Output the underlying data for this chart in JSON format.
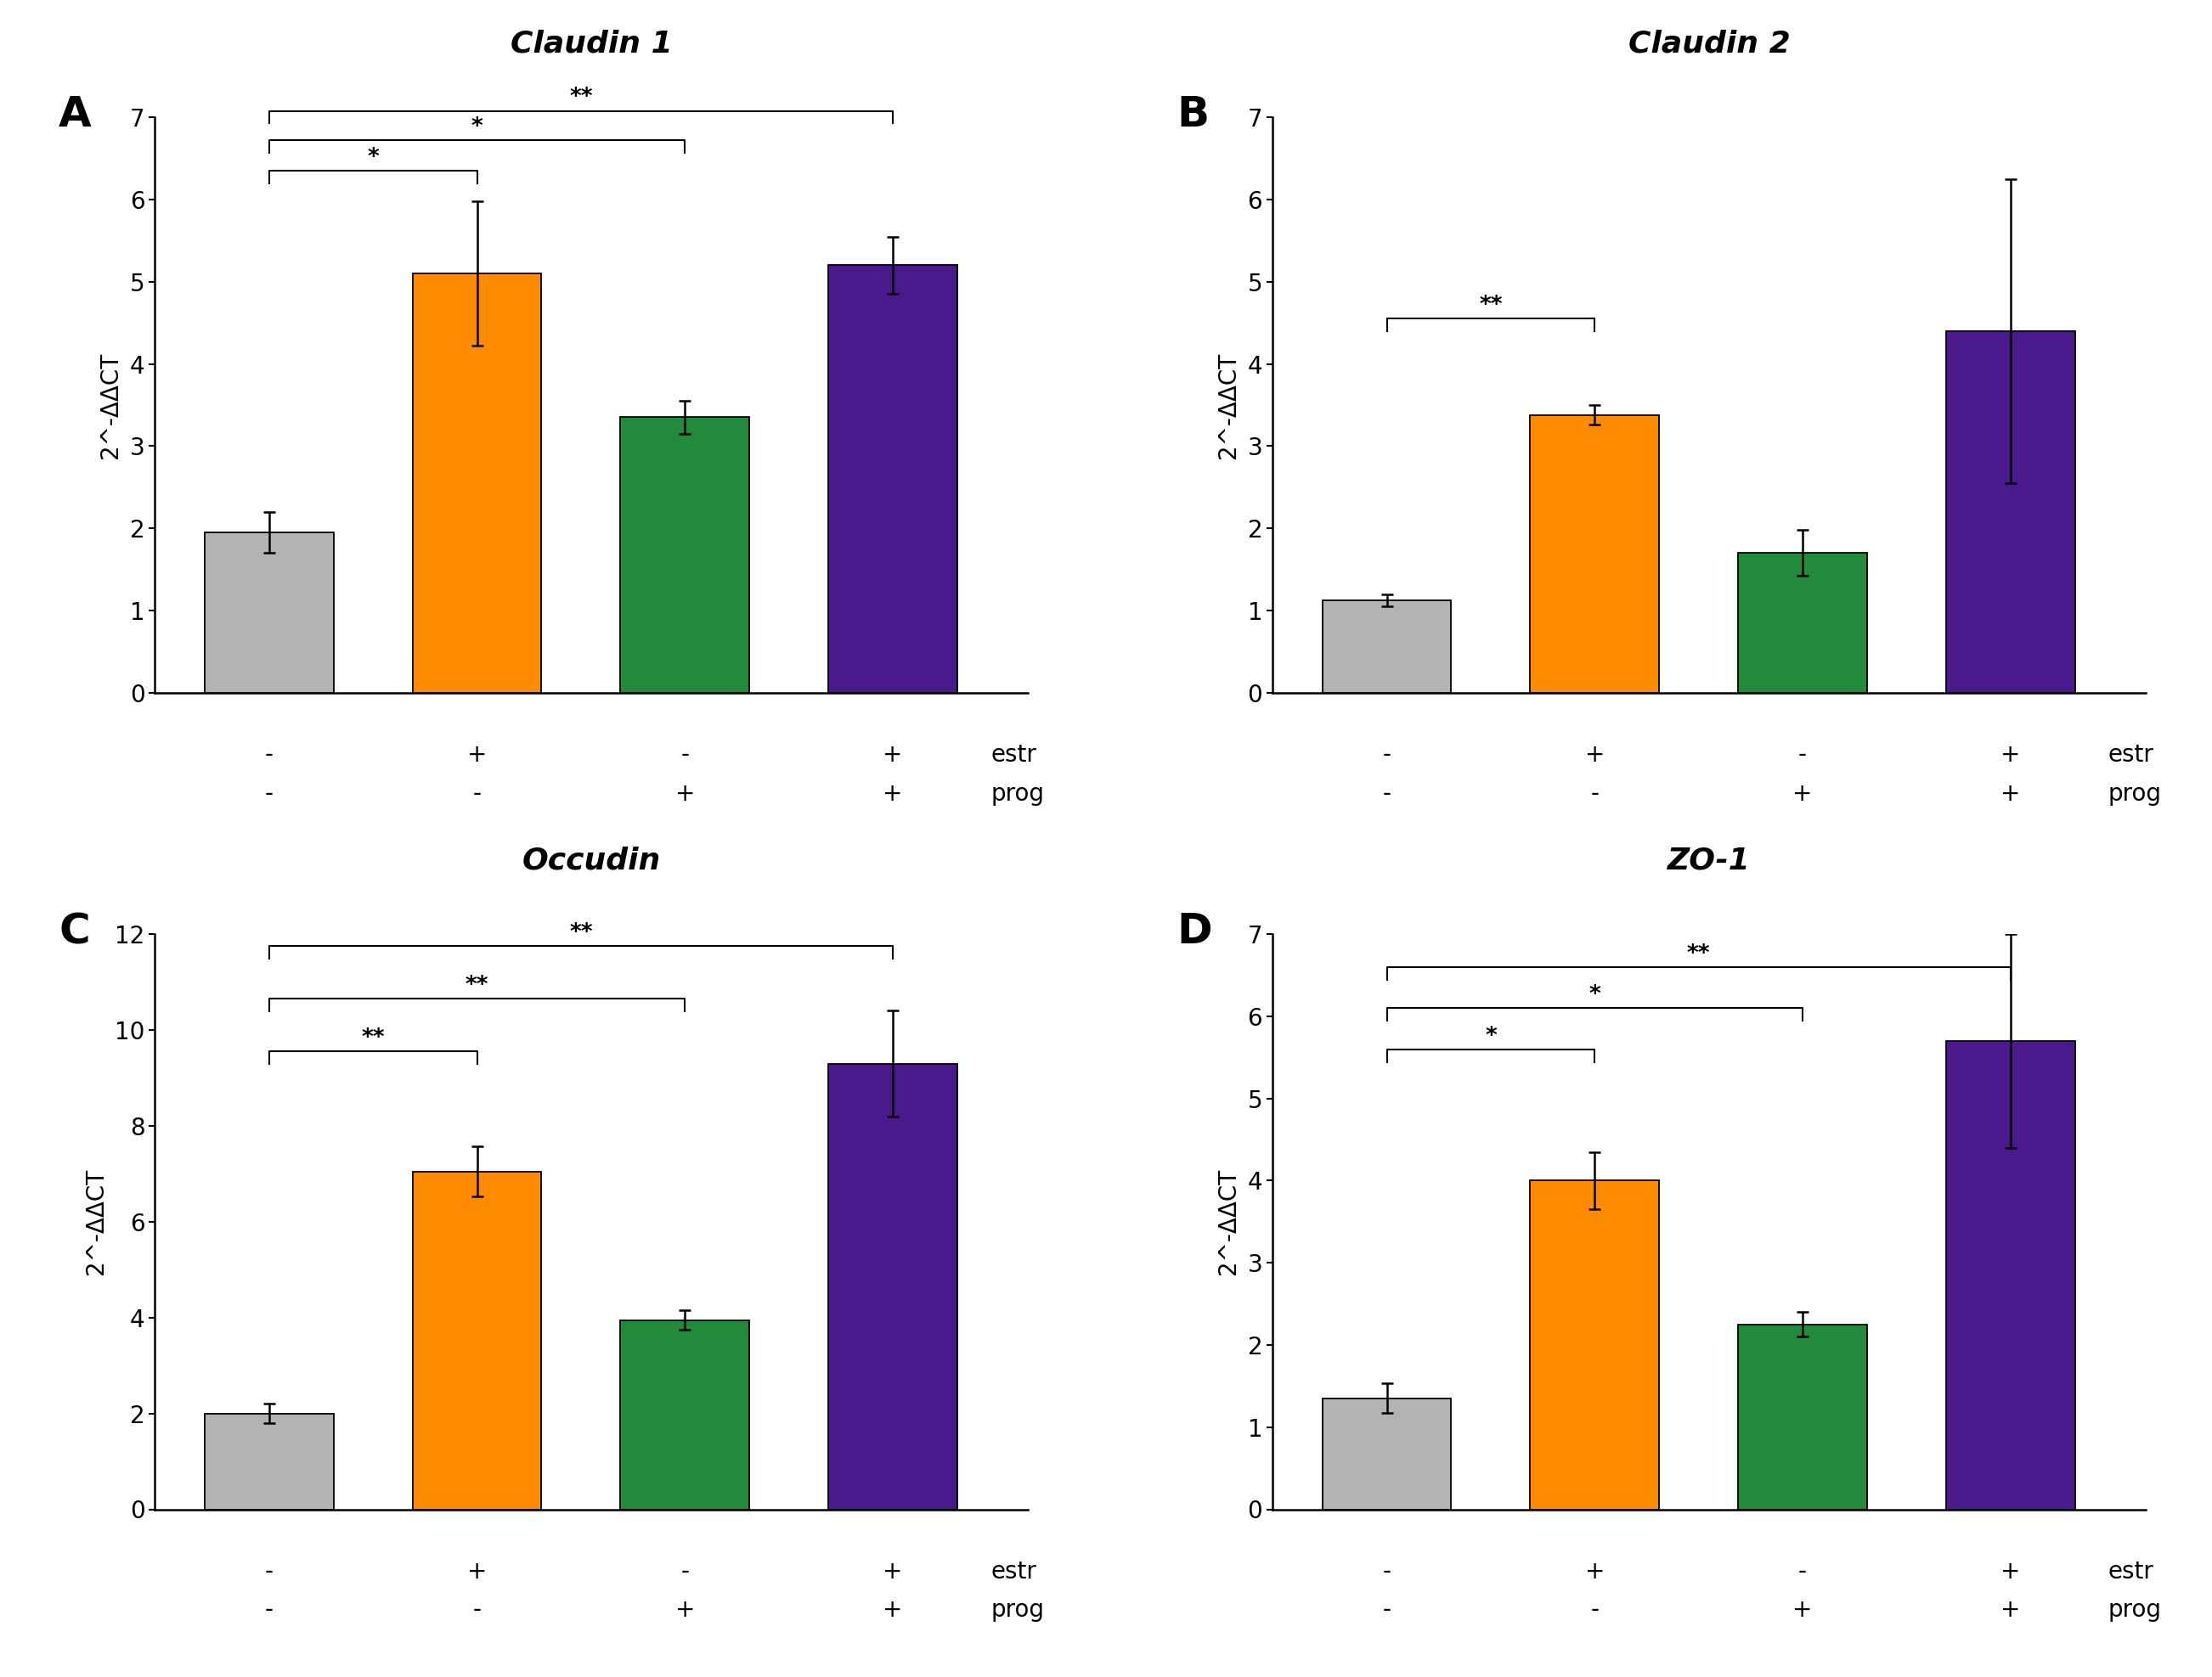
{
  "panels": [
    {
      "label": "A",
      "title": "Claudin 1",
      "values": [
        1.95,
        5.1,
        3.35,
        5.2
      ],
      "errors": [
        0.25,
        0.88,
        0.2,
        0.35
      ],
      "ylim": [
        0,
        7
      ],
      "yticks": [
        0,
        1,
        2,
        3,
        4,
        5,
        6,
        7
      ],
      "significance": [
        {
          "bars": [
            0,
            1
          ],
          "label": "*",
          "y": 6.35
        },
        {
          "bars": [
            0,
            2
          ],
          "label": "*",
          "y": 6.72
        },
        {
          "bars": [
            0,
            3
          ],
          "label": "**",
          "y": 7.08
        }
      ]
    },
    {
      "label": "B",
      "title": "Claudin 2",
      "values": [
        1.12,
        3.38,
        1.7,
        4.4
      ],
      "errors": [
        0.07,
        0.12,
        0.28,
        1.85
      ],
      "ylim": [
        0,
        7
      ],
      "yticks": [
        0,
        1,
        2,
        3,
        4,
        5,
        6,
        7
      ],
      "significance": [
        {
          "bars": [
            0,
            1
          ],
          "label": "**",
          "y": 4.55
        }
      ]
    },
    {
      "label": "C",
      "title": "Occudin",
      "values": [
        2.0,
        7.05,
        3.95,
        9.3
      ],
      "errors": [
        0.2,
        0.52,
        0.2,
        1.1
      ],
      "ylim": [
        0,
        12
      ],
      "yticks": [
        0,
        2,
        4,
        6,
        8,
        10,
        12
      ],
      "significance": [
        {
          "bars": [
            0,
            1
          ],
          "label": "**",
          "y": 9.55
        },
        {
          "bars": [
            0,
            2
          ],
          "label": "**",
          "y": 10.65
        },
        {
          "bars": [
            0,
            3
          ],
          "label": "**",
          "y": 11.75
        }
      ]
    },
    {
      "label": "D",
      "title": "ZO-1",
      "values": [
        1.35,
        4.0,
        2.25,
        5.7
      ],
      "errors": [
        0.18,
        0.35,
        0.15,
        1.3
      ],
      "ylim": [
        0,
        7
      ],
      "yticks": [
        0,
        1,
        2,
        3,
        4,
        5,
        6,
        7
      ],
      "significance": [
        {
          "bars": [
            0,
            1
          ],
          "label": "*",
          "y": 5.6
        },
        {
          "bars": [
            0,
            2
          ],
          "label": "*",
          "y": 6.1
        },
        {
          "bars": [
            0,
            3
          ],
          "label": "**",
          "y": 6.6
        }
      ]
    }
  ],
  "bar_colors": [
    "#b3b3b3",
    "#ff8c00",
    "#228b3b",
    "#4a1a8c"
  ],
  "estr_labels": [
    "-",
    "+",
    "-",
    "+"
  ],
  "prog_labels": [
    "-",
    "-",
    "+",
    "+"
  ],
  "ylabel": "2^-ΔΔCT",
  "bar_width": 0.62,
  "background_color": "#ffffff",
  "title_fontsize": 26,
  "panel_label_fontsize": 36,
  "tick_fontsize": 20,
  "ylabel_fontsize": 20,
  "sig_fontsize": 19,
  "annot_fontsize": 20
}
